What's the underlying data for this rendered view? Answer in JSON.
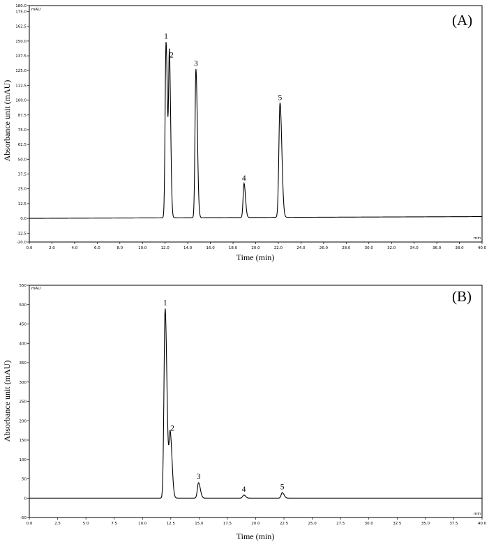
{
  "chart_data": [
    {
      "type": "line",
      "panel_label": "(A)",
      "ylabel": "Absorbance unit (mAU)",
      "xlabel": "Time (min)",
      "y_unit": "mAU",
      "x_unit": "min",
      "xlim": [
        0,
        40
      ],
      "ylim": [
        -20,
        180
      ],
      "x_ticks": [
        "0.0",
        "2.0",
        "4.0",
        "6.0",
        "8.0",
        "10.0",
        "12.0",
        "14.0",
        "16.0",
        "18.0",
        "20.0",
        "22.0",
        "24.0",
        "26.0",
        "28.0",
        "30.0",
        "32.0",
        "34.0",
        "36.0",
        "38.0",
        "40.0"
      ],
      "y_ticks": [
        "-20.0",
        "-12.5",
        "0.0",
        "12.5",
        "25.0",
        "37.5",
        "50.0",
        "62.5",
        "75.0",
        "87.5",
        "100.0",
        "112.5",
        "125.0",
        "137.5",
        "150.0",
        "162.5",
        "175.0",
        "180.0"
      ],
      "baseline": 0.0,
      "baseline_end": 1.5,
      "peaks": [
        {
          "label": "1",
          "time": 12.08,
          "height": 149,
          "width": 0.08
        },
        {
          "label": "2",
          "time": 12.38,
          "height": 133,
          "width": 0.07
        },
        {
          "label": "3",
          "time": 14.72,
          "height": 126,
          "width": 0.08
        },
        {
          "label": "4",
          "time": 18.97,
          "height": 29,
          "width": 0.08
        },
        {
          "label": "5",
          "time": 22.15,
          "height": 97,
          "width": 0.1
        }
      ]
    },
    {
      "type": "line",
      "panel_label": "(B)",
      "ylabel": "Absorbance unit (mAU)",
      "xlabel": "Time (min)",
      "y_unit": "mAU",
      "x_unit": "min",
      "xlim": [
        0,
        40
      ],
      "ylim": [
        -50,
        550
      ],
      "x_ticks": [
        "0.0",
        "2.5",
        "5.0",
        "7.5",
        "10.0",
        "12.5",
        "15.0",
        "17.5",
        "20.0",
        "22.5",
        "25.0",
        "27.5",
        "30.0",
        "32.5",
        "35.0",
        "37.5",
        "40.0"
      ],
      "y_ticks": [
        "-50",
        "0",
        "50",
        "100",
        "150",
        "200",
        "250",
        "300",
        "350",
        "400",
        "450",
        "500",
        "550"
      ],
      "baseline": 0.0,
      "baseline_end": 0.0,
      "peaks": [
        {
          "label": "1",
          "time": 12.0,
          "height": 490,
          "width": 0.1
        },
        {
          "label": "2",
          "time": 12.45,
          "height": 165,
          "width": 0.1
        },
        {
          "label": "3",
          "time": 14.95,
          "height": 40,
          "width": 0.1
        },
        {
          "label": "4",
          "time": 18.95,
          "height": 8,
          "width": 0.1
        },
        {
          "label": "5",
          "time": 22.35,
          "height": 14,
          "width": 0.1
        }
      ]
    }
  ]
}
